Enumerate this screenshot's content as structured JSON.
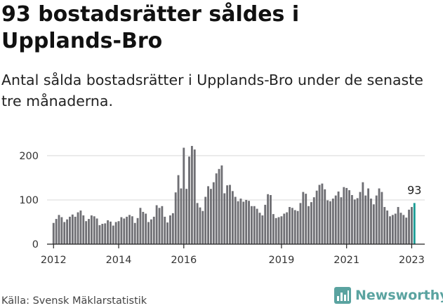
{
  "title": "93 bostadsrätter såldes i Upplands-Bro",
  "subtitle": "Antal sålda bostadsrätter i Upplands-Bro under de senaste tre månaderna.",
  "source": "Källa: Svensk Mäklarstatistik",
  "brand": {
    "name": "Newsworthy",
    "icon": "newsworthy-logo-icon"
  },
  "colors": {
    "bar": "#6f6f74",
    "highlight": "#1a9c95",
    "axis": "#222222",
    "grid": "#d8d8d8",
    "brand": "#5aa3a0"
  },
  "chart_data": {
    "type": "bar",
    "title": "",
    "xlabel": "",
    "ylabel": "",
    "x_range": [
      2011.8,
      2023.4
    ],
    "ylim": [
      0,
      230
    ],
    "yticks": [
      0,
      100,
      200
    ],
    "ytick_labels": [
      "0",
      "100",
      "200"
    ],
    "xticks": [
      2012,
      2014,
      2016,
      2019,
      2021,
      2023
    ],
    "xtick_labels": [
      "2012",
      "2014",
      "2016",
      "2019",
      "2021",
      "2023"
    ],
    "grid": true,
    "highlight_last": true,
    "last_label": "93",
    "start": 2012.0,
    "step": 0.08333,
    "values": [
      48,
      57,
      66,
      61,
      50,
      56,
      62,
      67,
      62,
      72,
      76,
      65,
      52,
      57,
      65,
      63,
      58,
      43,
      46,
      47,
      54,
      51,
      42,
      50,
      52,
      61,
      58,
      62,
      66,
      63,
      48,
      59,
      82,
      73,
      69,
      50,
      56,
      62,
      88,
      82,
      86,
      62,
      49,
      65,
      70,
      117,
      156,
      126,
      218,
      125,
      198,
      222,
      214,
      93,
      83,
      75,
      107,
      131,
      125,
      140,
      160,
      170,
      178,
      115,
      133,
      134,
      120,
      107,
      97,
      103,
      96,
      100,
      98,
      86,
      86,
      80,
      71,
      65,
      89,
      113,
      111,
      68,
      59,
      61,
      63,
      69,
      72,
      84,
      82,
      77,
      75,
      93,
      118,
      114,
      86,
      95,
      106,
      121,
      134,
      137,
      124,
      99,
      97,
      103,
      110,
      119,
      106,
      129,
      127,
      122,
      111,
      101,
      104,
      118,
      140,
      110,
      126,
      103,
      90,
      110,
      126,
      118,
      84,
      76,
      63,
      66,
      69,
      84,
      71,
      66,
      60,
      78,
      84,
      93
    ]
  }
}
